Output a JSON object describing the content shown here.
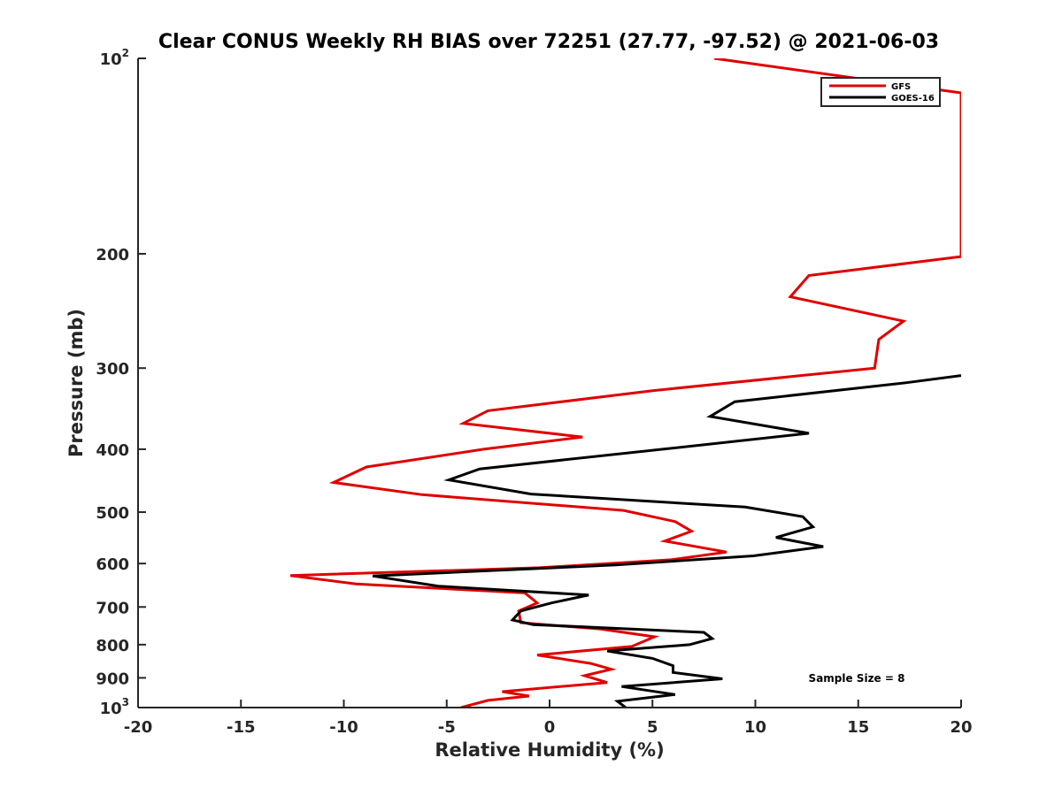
{
  "chart_data": {
    "type": "line",
    "title": "Clear CONUS Weekly RH BIAS over 72251 (27.77, -97.52) @ 2021-06-03",
    "xlabel": "Relative Humidity (%)",
    "ylabel": "Pressure (mb)",
    "xlim": [
      -20,
      20
    ],
    "ylim": [
      1000,
      100
    ],
    "yscale": "log",
    "y_reversed": true,
    "grid": false,
    "legend_position": "top-right",
    "x_ticks": [
      -20,
      -15,
      -10,
      -5,
      0,
      5,
      10,
      15,
      20
    ],
    "y_ticks": [
      {
        "value": 100,
        "label": "10",
        "sup": "2"
      },
      {
        "value": 200,
        "label": "200",
        "sup": ""
      },
      {
        "value": 300,
        "label": "300",
        "sup": ""
      },
      {
        "value": 400,
        "label": "400",
        "sup": ""
      },
      {
        "value": 500,
        "label": "500",
        "sup": ""
      },
      {
        "value": 600,
        "label": "600",
        "sup": ""
      },
      {
        "value": 700,
        "label": "700",
        "sup": ""
      },
      {
        "value": 800,
        "label": "800",
        "sup": ""
      },
      {
        "value": 900,
        "label": "900",
        "sup": ""
      },
      {
        "value": 1000,
        "label": "10",
        "sup": "3"
      }
    ],
    "annotation": "Sample Size = 8",
    "series": [
      {
        "name": "GFS",
        "color": "#e00000",
        "points": [
          [
            8.0,
            100
          ],
          [
            20.0,
            113
          ],
          [
            20.0,
            202
          ],
          [
            12.6,
            216
          ],
          [
            11.7,
            233
          ],
          [
            17.2,
            254
          ],
          [
            16.0,
            271
          ],
          [
            15.8,
            300
          ],
          [
            5.0,
            325
          ],
          [
            -3.0,
            349
          ],
          [
            -4.2,
            365
          ],
          [
            1.6,
            383
          ],
          [
            -3.2,
            400
          ],
          [
            -8.9,
            426
          ],
          [
            -10.5,
            450
          ],
          [
            -6.2,
            470
          ],
          [
            3.6,
            497
          ],
          [
            6.1,
            517
          ],
          [
            6.9,
            535
          ],
          [
            5.6,
            554
          ],
          [
            8.6,
            576
          ],
          [
            5.9,
            592
          ],
          [
            -0.5,
            609
          ],
          [
            -12.6,
            626
          ],
          [
            -9.4,
            645
          ],
          [
            -1.2,
            666
          ],
          [
            -0.6,
            690
          ],
          [
            -1.5,
            710
          ],
          [
            -1.4,
            740
          ],
          [
            2.5,
            757
          ],
          [
            5.1,
            778
          ],
          [
            4.0,
            805
          ],
          [
            -0.6,
            830
          ],
          [
            2.0,
            855
          ],
          [
            3.0,
            873
          ],
          [
            1.7,
            893
          ],
          [
            2.8,
            915
          ],
          [
            -2.3,
            945
          ],
          [
            -1.0,
            960
          ],
          [
            -3.0,
            975
          ],
          [
            -4.3,
            1000
          ]
        ]
      },
      {
        "name": "GOES-16",
        "color": "#000000",
        "points": [
          [
            20.0,
            308
          ],
          [
            17.3,
            316
          ],
          [
            9.0,
            338
          ],
          [
            7.8,
            356
          ],
          [
            12.6,
            378
          ],
          [
            5.5,
            400
          ],
          [
            -3.4,
            429
          ],
          [
            -4.9,
            446
          ],
          [
            -0.9,
            469
          ],
          [
            9.5,
            491
          ],
          [
            12.3,
            508
          ],
          [
            12.8,
            527
          ],
          [
            11.0,
            547
          ],
          [
            13.3,
            565
          ],
          [
            9.9,
            584
          ],
          [
            3.2,
            603
          ],
          [
            -8.6,
            627
          ],
          [
            -5.4,
            650
          ],
          [
            1.9,
            671
          ],
          [
            0.1,
            690
          ],
          [
            -1.4,
            710
          ],
          [
            -1.8,
            733
          ],
          [
            -0.8,
            745
          ],
          [
            7.5,
            766
          ],
          [
            7.9,
            783
          ],
          [
            6.8,
            800
          ],
          [
            2.8,
            818
          ],
          [
            5.0,
            840
          ],
          [
            6.0,
            862
          ],
          [
            6.0,
            883
          ],
          [
            8.4,
            903
          ],
          [
            3.5,
            928
          ],
          [
            6.1,
            955
          ],
          [
            3.3,
            978
          ],
          [
            3.7,
            1000
          ]
        ]
      }
    ]
  }
}
